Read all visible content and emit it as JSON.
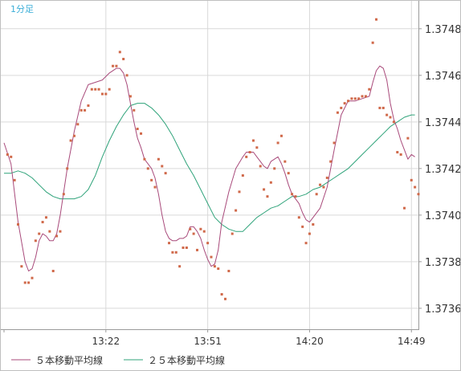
{
  "timeframe_label": "1分足",
  "colors": {
    "background": "#ffffff",
    "grid": "#d9d9d9",
    "axis": "#9a9a9a",
    "ma5": "#a8497a",
    "ma25": "#2fa37a",
    "price_dots": "#d0694a",
    "timeframe_label": "#3aaed8"
  },
  "legend": [
    {
      "label": "５本移動平均線",
      "color": "#a8497a"
    },
    {
      "label": "２５本移動平均線",
      "color": "#2fa37a"
    }
  ],
  "chart_data": {
    "type": "line",
    "x_tick_labels": [
      "13:22",
      "13:51",
      "14:20",
      "14:49"
    ],
    "x_tick_index": [
      29,
      58,
      87,
      116
    ],
    "ylim": [
      1.37351,
      1.37492
    ],
    "y_ticks": [
      1.3736,
      1.3738,
      1.374,
      1.3742,
      1.3744,
      1.3746,
      1.3748
    ],
    "grid": true,
    "legend_position": "bottom-left",
    "series": [
      {
        "name": "５本移動平均線",
        "style": "line",
        "color": "#a8497a",
        "values": [
          [
            0,
            1.37431
          ],
          [
            2,
            1.37422
          ],
          [
            4,
            1.37397
          ],
          [
            6,
            1.3738
          ],
          [
            7,
            1.37376
          ],
          [
            8,
            1.37377
          ],
          [
            9,
            1.37382
          ],
          [
            10,
            1.37389
          ],
          [
            11,
            1.37392
          ],
          [
            12,
            1.37391
          ],
          [
            13,
            1.37389
          ],
          [
            14,
            1.37389
          ],
          [
            15,
            1.37392
          ],
          [
            16,
            1.374
          ],
          [
            18,
            1.3742
          ],
          [
            20,
            1.37436
          ],
          [
            22,
            1.37449
          ],
          [
            24,
            1.37456
          ],
          [
            26,
            1.37457
          ],
          [
            28,
            1.37458
          ],
          [
            30,
            1.37461
          ],
          [
            32,
            1.37463
          ],
          [
            33,
            1.37463
          ],
          [
            34,
            1.37461
          ],
          [
            35,
            1.37456
          ],
          [
            36,
            1.37448
          ],
          [
            37,
            1.3744
          ],
          [
            38,
            1.37433
          ],
          [
            39,
            1.37429
          ],
          [
            40,
            1.37424
          ],
          [
            42,
            1.3742
          ],
          [
            43,
            1.37416
          ],
          [
            44,
            1.37409
          ],
          [
            45,
            1.374
          ],
          [
            46,
            1.37393
          ],
          [
            47,
            1.3739
          ],
          [
            48,
            1.37389
          ],
          [
            49,
            1.37389
          ],
          [
            50,
            1.3739
          ],
          [
            51,
            1.3739
          ],
          [
            52,
            1.37391
          ],
          [
            53,
            1.37395
          ],
          [
            54,
            1.37395
          ],
          [
            55,
            1.37393
          ],
          [
            56,
            1.3739
          ],
          [
            57,
            1.37385
          ],
          [
            58,
            1.37381
          ],
          [
            59,
            1.37378
          ],
          [
            60,
            1.37379
          ],
          [
            61,
            1.37385
          ],
          [
            62,
            1.37397
          ],
          [
            64,
            1.3741
          ],
          [
            66,
            1.3742
          ],
          [
            68,
            1.37425
          ],
          [
            69,
            1.37427
          ],
          [
            70,
            1.37427
          ],
          [
            71,
            1.37427
          ],
          [
            72,
            1.37425
          ],
          [
            73,
            1.37423
          ],
          [
            74,
            1.37421
          ],
          [
            75,
            1.3742
          ],
          [
            76,
            1.37423
          ],
          [
            77,
            1.37424
          ],
          [
            78,
            1.37425
          ],
          [
            79,
            1.37422
          ],
          [
            80,
            1.37418
          ],
          [
            81,
            1.37413
          ],
          [
            82,
            1.37409
          ],
          [
            83,
            1.37407
          ],
          [
            84,
            1.37405
          ],
          [
            85,
            1.37401
          ],
          [
            86,
            1.37398
          ],
          [
            87,
            1.37397
          ],
          [
            88,
            1.37399
          ],
          [
            90,
            1.37403
          ],
          [
            92,
            1.37412
          ],
          [
            94,
            1.37428
          ],
          [
            96,
            1.37443
          ],
          [
            98,
            1.37449
          ],
          [
            100,
            1.37449
          ],
          [
            102,
            1.3745
          ],
          [
            104,
            1.37451
          ],
          [
            105,
            1.37457
          ],
          [
            106,
            1.37462
          ],
          [
            107,
            1.37464
          ],
          [
            108,
            1.37463
          ],
          [
            109,
            1.37458
          ],
          [
            110,
            1.37448
          ],
          [
            111,
            1.37441
          ],
          [
            112,
            1.37437
          ],
          [
            113,
            1.37432
          ],
          [
            114,
            1.37428
          ],
          [
            115,
            1.37424
          ],
          [
            116,
            1.37426
          ],
          [
            117,
            1.37425
          ]
        ]
      },
      {
        "name": "２５本移動平均線",
        "style": "line",
        "color": "#2fa37a",
        "values": [
          [
            0,
            1.37418
          ],
          [
            2,
            1.37418
          ],
          [
            4,
            1.37419
          ],
          [
            6,
            1.37418
          ],
          [
            8,
            1.37416
          ],
          [
            10,
            1.37413
          ],
          [
            12,
            1.3741
          ],
          [
            14,
            1.37408
          ],
          [
            16,
            1.37407
          ],
          [
            18,
            1.37407
          ],
          [
            20,
            1.37407
          ],
          [
            22,
            1.37408
          ],
          [
            24,
            1.37411
          ],
          [
            26,
            1.37417
          ],
          [
            28,
            1.37425
          ],
          [
            30,
            1.37432
          ],
          [
            32,
            1.37438
          ],
          [
            34,
            1.37443
          ],
          [
            36,
            1.37447
          ],
          [
            38,
            1.37448
          ],
          [
            40,
            1.37448
          ],
          [
            42,
            1.37446
          ],
          [
            44,
            1.37443
          ],
          [
            46,
            1.37439
          ],
          [
            48,
            1.37434
          ],
          [
            50,
            1.37428
          ],
          [
            52,
            1.37422
          ],
          [
            54,
            1.37417
          ],
          [
            56,
            1.37411
          ],
          [
            58,
            1.37405
          ],
          [
            60,
            1.37399
          ],
          [
            62,
            1.37396
          ],
          [
            64,
            1.37394
          ],
          [
            66,
            1.37393
          ],
          [
            68,
            1.37393
          ],
          [
            70,
            1.37396
          ],
          [
            72,
            1.37399
          ],
          [
            74,
            1.37401
          ],
          [
            76,
            1.37403
          ],
          [
            78,
            1.37404
          ],
          [
            80,
            1.37406
          ],
          [
            82,
            1.37408
          ],
          [
            84,
            1.37408
          ],
          [
            86,
            1.37409
          ],
          [
            88,
            1.37411
          ],
          [
            90,
            1.37412
          ],
          [
            92,
            1.37414
          ],
          [
            94,
            1.37416
          ],
          [
            96,
            1.37418
          ],
          [
            98,
            1.3742
          ],
          [
            100,
            1.37423
          ],
          [
            102,
            1.37426
          ],
          [
            104,
            1.37429
          ],
          [
            106,
            1.37432
          ],
          [
            108,
            1.37435
          ],
          [
            110,
            1.37438
          ],
          [
            112,
            1.3744
          ],
          [
            114,
            1.37442
          ],
          [
            116,
            1.37443
          ],
          [
            117,
            1.37443
          ]
        ]
      },
      {
        "name": "",
        "style": "dots",
        "color": "#d0694a",
        "values": [
          [
            1,
            1.37426
          ],
          [
            2,
            1.37425
          ],
          [
            3,
            1.37415
          ],
          [
            4,
            1.37396
          ],
          [
            5,
            1.37378
          ],
          [
            6,
            1.37371
          ],
          [
            7,
            1.37371
          ],
          [
            8,
            1.37373
          ],
          [
            9,
            1.37389
          ],
          [
            10,
            1.37392
          ],
          [
            11,
            1.37397
          ],
          [
            12,
            1.37399
          ],
          [
            13,
            1.37393
          ],
          [
            14,
            1.37376
          ],
          [
            15,
            1.37391
          ],
          [
            16,
            1.37393
          ],
          [
            17,
            1.37409
          ],
          [
            18,
            1.3742
          ],
          [
            19,
            1.37432
          ],
          [
            20,
            1.37434
          ],
          [
            21,
            1.37439
          ],
          [
            22,
            1.37445
          ],
          [
            23,
            1.37445
          ],
          [
            24,
            1.37447
          ],
          [
            25,
            1.37454
          ],
          [
            26,
            1.37454
          ],
          [
            27,
            1.37454
          ],
          [
            28,
            1.37452
          ],
          [
            29,
            1.37452
          ],
          [
            30,
            1.37454
          ],
          [
            31,
            1.37464
          ],
          [
            32,
            1.37464
          ],
          [
            33,
            1.3747
          ],
          [
            34,
            1.37467
          ],
          [
            35,
            1.3746
          ],
          [
            36,
            1.37451
          ],
          [
            37,
            1.37445
          ],
          [
            38,
            1.37437
          ],
          [
            39,
            1.37435
          ],
          [
            40,
            1.37424
          ],
          [
            41,
            1.3742
          ],
          [
            42,
            1.37415
          ],
          [
            43,
            1.37412
          ],
          [
            44,
            1.37424
          ],
          [
            45,
            1.37421
          ],
          [
            46,
            1.37418
          ],
          [
            47,
            1.37388
          ],
          [
            48,
            1.37384
          ],
          [
            49,
            1.37384
          ],
          [
            50,
            1.37378
          ],
          [
            51,
            1.37386
          ],
          [
            52,
            1.37386
          ],
          [
            53,
            1.37394
          ],
          [
            54,
            1.37392
          ],
          [
            55,
            1.37385
          ],
          [
            56,
            1.37394
          ],
          [
            57,
            1.37393
          ],
          [
            58,
            1.37388
          ],
          [
            59,
            1.37382
          ],
          [
            60,
            1.37378
          ],
          [
            61,
            1.37377
          ],
          [
            62,
            1.37366
          ],
          [
            63,
            1.37364
          ],
          [
            64,
            1.37376
          ],
          [
            65,
            1.37392
          ],
          [
            66,
            1.37402
          ],
          [
            67,
            1.3741
          ],
          [
            68,
            1.37417
          ],
          [
            69,
            1.37425
          ],
          [
            70,
            1.37427
          ],
          [
            71,
            1.37432
          ],
          [
            72,
            1.37429
          ],
          [
            73,
            1.37421
          ],
          [
            74,
            1.37411
          ],
          [
            75,
            1.37408
          ],
          [
            76,
            1.37414
          ],
          [
            77,
            1.3742
          ],
          [
            78,
            1.37431
          ],
          [
            79,
            1.37434
          ],
          [
            80,
            1.37423
          ],
          [
            81,
            1.37418
          ],
          [
            82,
            1.37409
          ],
          [
            83,
            1.37408
          ],
          [
            84,
            1.37399
          ],
          [
            85,
            1.37395
          ],
          [
            86,
            1.37388
          ],
          [
            87,
            1.37392
          ],
          [
            88,
            1.37396
          ],
          [
            89,
            1.37409
          ],
          [
            90,
            1.37413
          ],
          [
            91,
            1.37412
          ],
          [
            92,
            1.37416
          ],
          [
            93,
            1.37423
          ],
          [
            94,
            1.37431
          ],
          [
            95,
            1.37444
          ],
          [
            96,
            1.37446
          ],
          [
            97,
            1.37448
          ],
          [
            98,
            1.37449
          ],
          [
            99,
            1.3745
          ],
          [
            100,
            1.3745
          ],
          [
            101,
            1.3745
          ],
          [
            102,
            1.37451
          ],
          [
            103,
            1.37451
          ],
          [
            104,
            1.37454
          ],
          [
            105,
            1.37474
          ],
          [
            106,
            1.37484
          ],
          [
            107,
            1.37446
          ],
          [
            108,
            1.37446
          ],
          [
            109,
            1.37443
          ],
          [
            110,
            1.37442
          ],
          [
            111,
            1.3744
          ],
          [
            112,
            1.37427
          ],
          [
            113,
            1.37426
          ],
          [
            114,
            1.37403
          ],
          [
            115,
            1.37433
          ],
          [
            116,
            1.37415
          ],
          [
            117,
            1.37412
          ],
          [
            118,
            1.37409
          ]
        ]
      }
    ]
  }
}
